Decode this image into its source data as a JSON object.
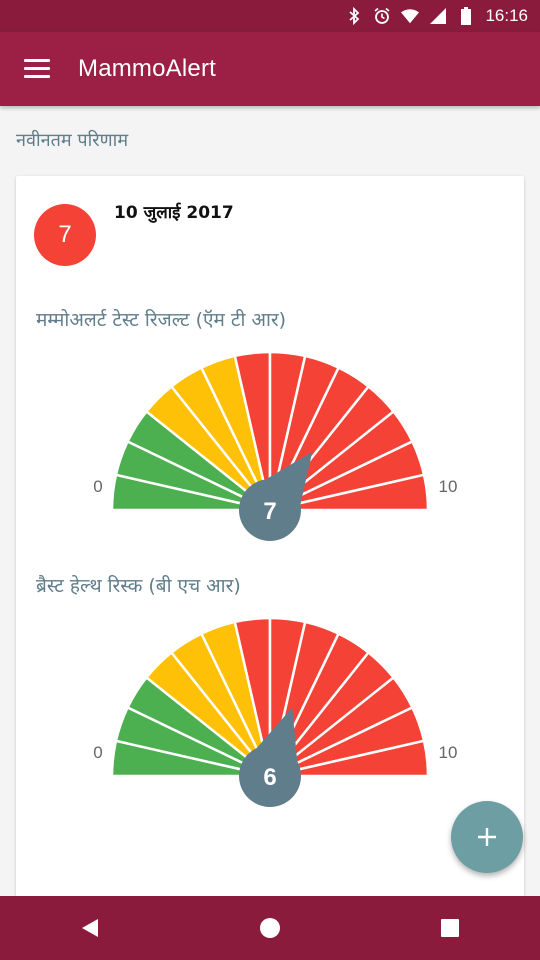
{
  "status_bar": {
    "time": "16:16",
    "icons": [
      "bluetooth-icon",
      "alarm-icon",
      "wifi-icon",
      "signal-icon",
      "battery-icon"
    ]
  },
  "app_bar": {
    "title": "MammoAlert",
    "menu_icon": "hamburger-menu-icon"
  },
  "section": {
    "title": "नवीनतम परिणाम"
  },
  "result_card": {
    "score": "7",
    "date": "10 जुलाई 2017",
    "gauges": [
      {
        "title": "मम्मोअलर्ट टेस्ट रिजल्ट (ऍम टी आर)",
        "value": 7,
        "min_label": "0",
        "max_label": "10",
        "value_label": "7"
      },
      {
        "title": "ब्रैस्ट हेल्थ रिस्क (बी एच आर)",
        "value": 6,
        "min_label": "0",
        "max_label": "10",
        "value_label": "6"
      }
    ]
  },
  "segment_colors": [
    "#4caf50",
    "#4caf50",
    "#4caf50",
    "#ffc107",
    "#ffc107",
    "#ffc107",
    "#f44336",
    "#f44336",
    "#f44336",
    "#f44336",
    "#f44336",
    "#f44336",
    "#f44336",
    "#f44336"
  ],
  "colors": {
    "status_bar": "#8a1b3d",
    "app_bar": "#9c1f45",
    "badge": "#f44336",
    "needle": "#607d8b",
    "fab": "#6c9ea3"
  },
  "fab": {
    "icon": "plus-icon"
  },
  "nav": {
    "icons": [
      "back-icon",
      "home-icon",
      "recents-icon"
    ]
  }
}
